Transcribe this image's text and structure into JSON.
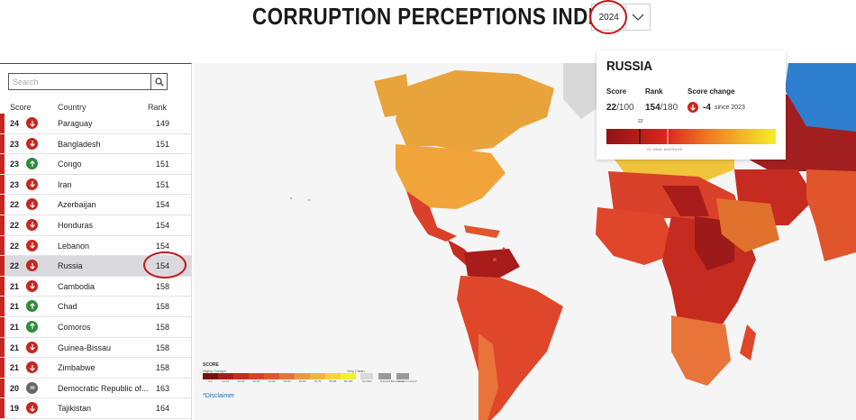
{
  "header": {
    "title": "CORRUPTION PERCEPTIONS INDEX",
    "year": "2024"
  },
  "search": {
    "placeholder": "Search"
  },
  "table": {
    "columns": {
      "score": "Score",
      "country": "Country",
      "rank": "Rank"
    },
    "rows": [
      {
        "score": "24",
        "trend": "down",
        "country": "Paraguay",
        "rank": "149"
      },
      {
        "score": "23",
        "trend": "down",
        "country": "Bangladesh",
        "rank": "151"
      },
      {
        "score": "23",
        "trend": "up",
        "country": "Congo",
        "rank": "151"
      },
      {
        "score": "23",
        "trend": "down",
        "country": "Iran",
        "rank": "151"
      },
      {
        "score": "22",
        "trend": "down",
        "country": "Azerbaijan",
        "rank": "154"
      },
      {
        "score": "22",
        "trend": "down",
        "country": "Honduras",
        "rank": "154"
      },
      {
        "score": "22",
        "trend": "down",
        "country": "Lebanon",
        "rank": "154"
      },
      {
        "score": "22",
        "trend": "down",
        "country": "Russia",
        "rank": "154"
      },
      {
        "score": "21",
        "trend": "down",
        "country": "Cambodia",
        "rank": "158"
      },
      {
        "score": "21",
        "trend": "up",
        "country": "Chad",
        "rank": "158"
      },
      {
        "score": "21",
        "trend": "up",
        "country": "Comoros",
        "rank": "158"
      },
      {
        "score": "21",
        "trend": "down",
        "country": "Guinea-Bissau",
        "rank": "158"
      },
      {
        "score": "21",
        "trend": "down",
        "country": "Zimbabwe",
        "rank": "158"
      },
      {
        "score": "20",
        "trend": "same",
        "country": "Democratic Republic of...",
        "rank": "163"
      },
      {
        "score": "19",
        "trend": "down",
        "country": "Tajikistan",
        "rank": "164"
      }
    ],
    "selected_country": "Russia"
  },
  "card": {
    "country": "RUSSIA",
    "score_label": "Score",
    "score_value": "22",
    "score_of": "/100",
    "rank_label": "Rank",
    "rank_value": "154",
    "rank_of": "/180",
    "change_label": "Score change",
    "change_value": "-4",
    "change_since": "since 2023",
    "marker": "22",
    "avg_label": "GLOBAL AVERAGE"
  },
  "legend": {
    "title": "SCORE",
    "low": "Highly Corrupt",
    "high": "Very Clean",
    "bins": [
      "0-9",
      "10-19",
      "20-29",
      "30-39",
      "40-49",
      "50-59",
      "60-69",
      "70-79",
      "80-89",
      "90-100"
    ],
    "extra": [
      "No Data",
      "Disputed Boundaries*",
      "Lines of Control*"
    ],
    "disclaimer": "*Disclaimer"
  },
  "colors": {
    "accent_red": "#c3161c",
    "down": "#c6261f",
    "up": "#2e8b3a",
    "same": "#666666",
    "ocean": "#f5f5f5"
  }
}
